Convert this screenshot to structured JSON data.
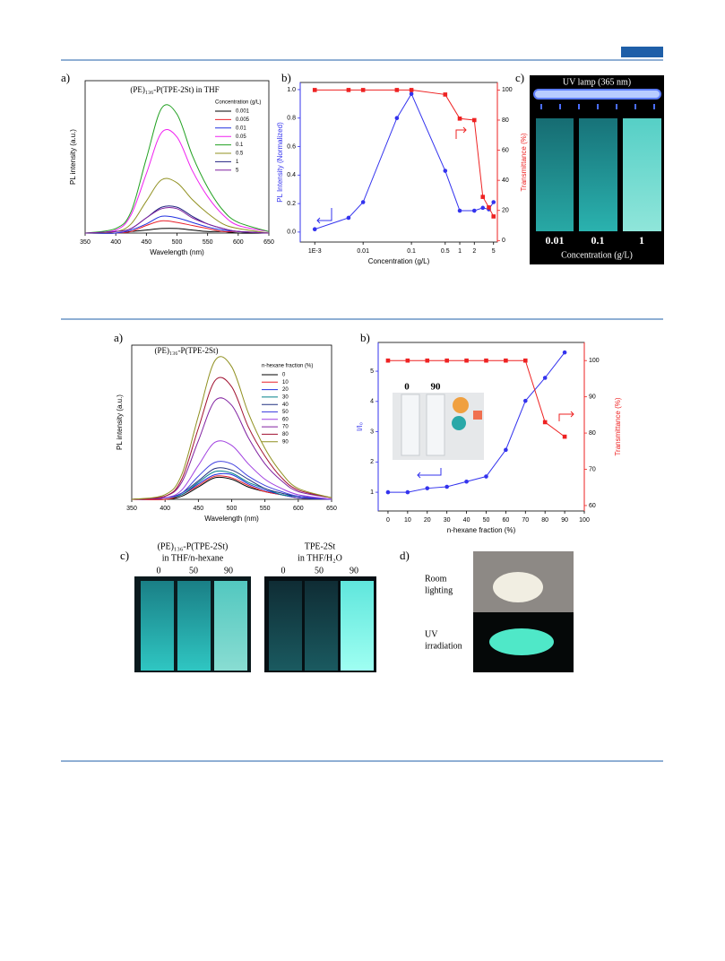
{
  "chart_data": [
    {
      "type": "line",
      "panel": "a)",
      "title": "(PE)₁₃₆-P(TPE-2St) in THF",
      "xlabel": "Wavelength (nm)",
      "ylabel": "PL intensity (a.u.)",
      "legend_title": "Concentration (g/L)",
      "x": [
        350,
        400,
        425,
        450,
        475,
        500,
        525,
        550,
        575,
        600,
        650
      ],
      "xlim": [
        350,
        650
      ],
      "xticks": [
        350,
        400,
        450,
        500,
        550,
        600,
        650
      ],
      "ylim": [
        0,
        100
      ],
      "series": [
        {
          "name": "0.001",
          "color": "#000000",
          "values": [
            0,
            0,
            1,
            2,
            3,
            3,
            2,
            1,
            1,
            0,
            0
          ]
        },
        {
          "name": "0.005",
          "color": "#e8202a",
          "values": [
            0,
            0,
            1,
            5,
            8,
            7,
            5,
            3,
            1,
            1,
            0
          ]
        },
        {
          "name": "0.01",
          "color": "#2030e0",
          "values": [
            0,
            0,
            2,
            6,
            11,
            10,
            7,
            4,
            2,
            1,
            0
          ]
        },
        {
          "name": "0.05",
          "color": "#f020f0",
          "values": [
            0,
            2,
            12,
            39,
            66,
            63,
            41,
            24,
            12,
            5,
            1
          ]
        },
        {
          "name": "0.1",
          "color": "#20a020",
          "values": [
            0,
            3,
            14,
            49,
            82,
            78,
            51,
            30,
            15,
            7,
            1
          ]
        },
        {
          "name": "0.5",
          "color": "#909020",
          "values": [
            0,
            1,
            6,
            21,
            35,
            33,
            22,
            13,
            6,
            3,
            0
          ]
        },
        {
          "name": "1",
          "color": "#202080",
          "values": [
            0,
            1,
            3,
            10,
            17,
            17,
            11,
            6,
            3,
            1,
            0
          ]
        },
        {
          "name": "5",
          "color": "#8020a0",
          "values": [
            0,
            1,
            3,
            10,
            16,
            16,
            10,
            6,
            3,
            1,
            0
          ]
        }
      ]
    },
    {
      "type": "line",
      "panel": "b)",
      "xlabel": "Concentration (g/L)",
      "ylabel": "PL Intensity (Normalized)",
      "y2label": "Transmittance (%)",
      "xscale": "log",
      "x": [
        0.001,
        0.005,
        0.01,
        0.05,
        0.1,
        0.5,
        1,
        2,
        3,
        4,
        5
      ],
      "xlim": [
        0.0005,
        6
      ],
      "xticks": [
        {
          "value": 0.001,
          "label": "1E-3"
        },
        0.01,
        0.1,
        0.5,
        1,
        2,
        5
      ],
      "ylim": [
        -0.07,
        1.05
      ],
      "yticks": [
        {
          "value": 0,
          "label": "0.0"
        },
        0.2,
        0.4,
        0.6,
        0.8,
        {
          "value": 1,
          "label": "1.0"
        }
      ],
      "y2lim": [
        -1,
        105
      ],
      "y2ticks": [
        0,
        20,
        40,
        60,
        80,
        100
      ],
      "series": [
        {
          "color": "#3333ee",
          "marker": "circle",
          "values": [
            0.02,
            0.1,
            0.21,
            0.8,
            0.97,
            0.43,
            0.15,
            0.15,
            0.17,
            0.16,
            0.21
          ]
        },
        {
          "color": "#ee2222",
          "marker": "square",
          "axis": "y2",
          "values": [
            100,
            100,
            100,
            100,
            100,
            97,
            81,
            80,
            29,
            22,
            16
          ]
        }
      ]
    },
    {
      "type": "line",
      "panel": "a)",
      "title": "(PE)₁₃₆-P(TPE-2St)",
      "xlabel": "Wavelength (nm)",
      "ylabel": "PL intensity (a.u.)",
      "legend_title": "n-hexane fraction (%)",
      "x": [
        350,
        400,
        425,
        450,
        475,
        500,
        525,
        550,
        575,
        600,
        650
      ],
      "xlim": [
        350,
        650
      ],
      "xticks": [
        350,
        400,
        450,
        500,
        550,
        600,
        650
      ],
      "ylim": [
        0,
        100
      ],
      "series": [
        {
          "name": "0",
          "color": "#000000",
          "values": [
            0,
            0,
            2,
            8,
            14,
            13,
            8,
            5,
            3,
            1,
            0
          ]
        },
        {
          "name": "10",
          "color": "#e8202a",
          "values": [
            0,
            0,
            3,
            9,
            15,
            14,
            9,
            5,
            3,
            1,
            0
          ]
        },
        {
          "name": "20",
          "color": "#2030e0",
          "values": [
            0,
            1,
            3,
            10,
            16,
            16,
            10,
            6,
            3,
            1,
            0
          ]
        },
        {
          "name": "30",
          "color": "#00808a",
          "values": [
            0,
            1,
            3,
            11,
            18,
            17,
            11,
            7,
            3,
            2,
            0
          ]
        },
        {
          "name": "40",
          "color": "#203080",
          "values": [
            0,
            1,
            4,
            12,
            20,
            19,
            13,
            7,
            4,
            2,
            0
          ]
        },
        {
          "name": "50",
          "color": "#4040e0",
          "values": [
            0,
            1,
            4,
            15,
            24,
            23,
            15,
            9,
            5,
            2,
            0
          ]
        },
        {
          "name": "60",
          "color": "#a040e0",
          "values": [
            0,
            1,
            6,
            22,
            37,
            35,
            23,
            13,
            7,
            3,
            0
          ]
        },
        {
          "name": "70",
          "color": "#8020a0",
          "values": [
            0,
            2,
            11,
            38,
            64,
            61,
            40,
            23,
            12,
            5,
            1
          ]
        },
        {
          "name": "80",
          "color": "#a01030",
          "values": [
            0,
            2,
            13,
            46,
            77,
            73,
            47,
            28,
            14,
            6,
            1
          ]
        },
        {
          "name": "90",
          "color": "#909020",
          "values": [
            0,
            3,
            16,
            54,
            90,
            86,
            56,
            33,
            17,
            7,
            1
          ]
        }
      ]
    },
    {
      "type": "line",
      "panel": "b)",
      "xlabel": "n-hexane fraction (%)",
      "ylabel": "I/I₀",
      "y2label": "Transmittance (%)",
      "x": [
        0,
        10,
        20,
        30,
        40,
        50,
        60,
        70,
        80,
        90
      ],
      "xlim": [
        -5,
        100
      ],
      "xticks": [
        0,
        10,
        20,
        30,
        40,
        50,
        60,
        70,
        80,
        90,
        100
      ],
      "ylim": [
        0.38,
        5.95
      ],
      "yticks": [
        1,
        2,
        3,
        4,
        5
      ],
      "y2lim": [
        58.5,
        105
      ],
      "y2ticks": [
        60,
        70,
        80,
        90,
        100
      ],
      "series": [
        {
          "color": "#3333ee",
          "marker": "circle",
          "values": [
            1,
            1,
            1.13,
            1.18,
            1.35,
            1.52,
            2.4,
            4.02,
            4.78,
            5.62
          ]
        },
        {
          "color": "#ee2222",
          "marker": "square",
          "axis": "y2",
          "values": [
            100,
            100,
            100,
            100,
            100,
            100,
            100,
            100,
            83,
            79
          ]
        }
      ]
    }
  ],
  "photo_1c": {
    "panel": "c)",
    "lamp": "UV lamp (365 nm)",
    "samples": [
      "0.01",
      "0.1",
      "1"
    ],
    "caption": "Concentration (g/L)"
  },
  "photo_2b_inset": {
    "labels": [
      "0",
      "90"
    ]
  },
  "photo_2c": {
    "panel": "c)",
    "groups": [
      {
        "title": "(PE)₁₃₆-P(TPE-2St)",
        "subtitle": "in THF/n-hexane",
        "samples": [
          "0",
          "50",
          "90"
        ]
      },
      {
        "title": "TPE-2St",
        "subtitle": "in THF/H₂O",
        "samples": [
          "0",
          "50",
          "90"
        ]
      }
    ]
  },
  "photo_2d": {
    "panel": "d)",
    "rows": [
      [
        "Room",
        "lighting"
      ],
      [
        "UV",
        "irradiation"
      ]
    ]
  }
}
